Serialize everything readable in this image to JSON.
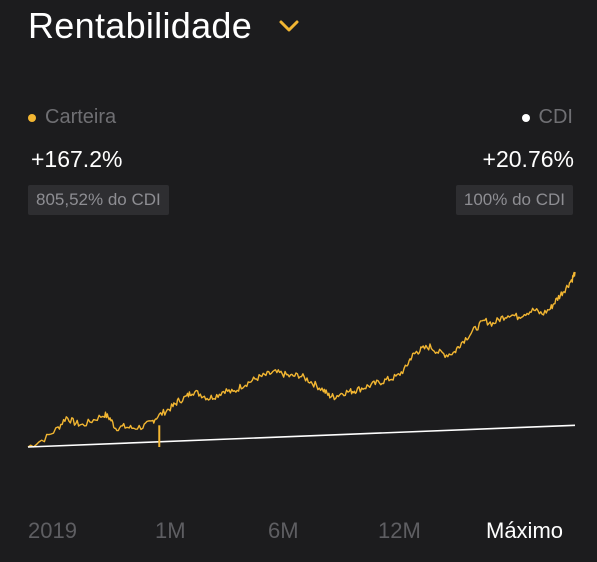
{
  "header": {
    "title": "Rentabilidade",
    "dropdown_icon": "chevron-down-icon",
    "accent": "#f2b632"
  },
  "legend": {
    "portfolio": {
      "label": "Carteira",
      "color": "#f2b632",
      "value": "+167.2%",
      "badge": "805,52% do CDI"
    },
    "benchmark": {
      "label": "CDI",
      "color": "#ffffff",
      "value": "+20.76%",
      "badge": "100% do CDI"
    }
  },
  "chart_data": {
    "type": "line",
    "title": "",
    "xlabel": "",
    "ylabel": "",
    "grid": false,
    "legend": "top",
    "series": [
      {
        "name": "Carteira",
        "color": "#f2b632",
        "x": [
          0,
          0.03,
          0.055,
          0.07,
          0.085,
          0.1,
          0.12,
          0.14,
          0.15,
          0.16,
          0.175,
          0.19,
          0.21,
          0.225,
          0.235,
          0.25,
          0.265,
          0.275,
          0.29,
          0.3,
          0.315,
          0.33,
          0.345,
          0.36,
          0.375,
          0.39,
          0.405,
          0.42,
          0.435,
          0.45,
          0.465,
          0.48,
          0.495,
          0.51,
          0.525,
          0.54,
          0.55,
          0.56,
          0.575,
          0.59,
          0.6,
          0.615,
          0.63,
          0.645,
          0.66,
          0.675,
          0.69,
          0.7,
          0.71,
          0.72,
          0.735,
          0.75,
          0.765,
          0.78,
          0.79,
          0.805,
          0.82,
          0.835,
          0.85,
          0.865,
          0.88,
          0.895,
          0.91,
          0.925,
          0.94,
          0.955,
          0.965,
          0.975,
          0.985,
          0.995,
          1.0
        ],
        "y": [
          0,
          6,
          14,
          22,
          18,
          16,
          20,
          24,
          21,
          14,
          15,
          14,
          15,
          18,
          22,
          26,
          30,
          34,
          37,
          41,
          39,
          36,
          38,
          42,
          40,
          45,
          48,
          51,
          53,
          55,
          54,
          52,
          53,
          50,
          46,
          42,
          38,
          37,
          40,
          41,
          42,
          44,
          46,
          48,
          50,
          52,
          58,
          66,
          70,
          72,
          74,
          70,
          68,
          70,
          76,
          82,
          88,
          93,
          91,
          95,
          98,
          96,
          99,
          101,
          98,
          102,
          108,
          113,
          118,
          124,
          129
        ]
      },
      {
        "name": "CDI",
        "color": "#ffffff",
        "x": [
          0,
          1
        ],
        "y": [
          0,
          16
        ]
      }
    ],
    "ylim": [
      0,
      160
    ],
    "marker_line_x": 0.24
  },
  "periods": [
    {
      "label": "2019",
      "active": false
    },
    {
      "label": "1M",
      "active": false
    },
    {
      "label": "6M",
      "active": false
    },
    {
      "label": "12M",
      "active": false
    },
    {
      "label": "Máximo",
      "active": true
    }
  ]
}
